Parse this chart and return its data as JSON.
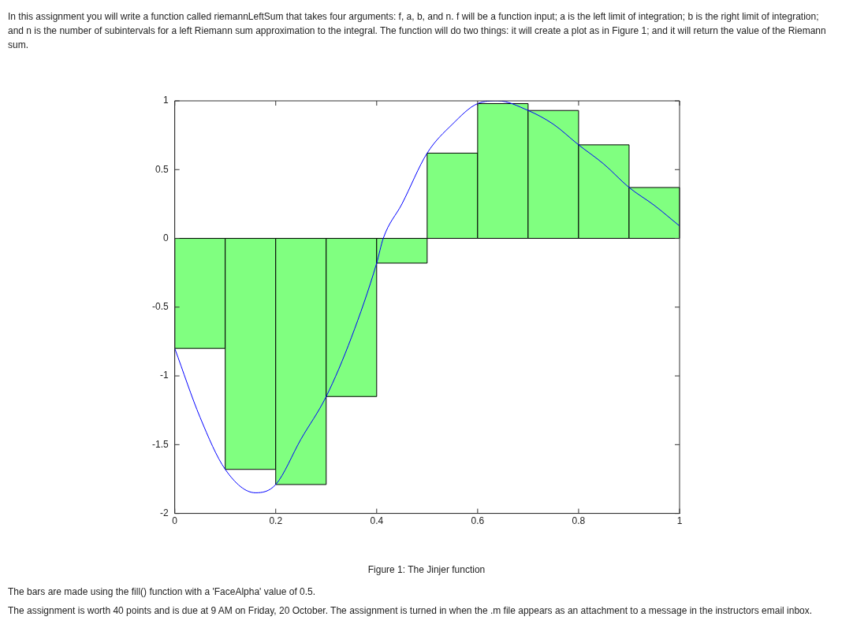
{
  "chart_data": {
    "type": "histogram",
    "annotations": [
      "In this assignment you will write a function called riemannLeftSum that takes four arguments: f, a, b, and n. f will be a function input; a is the left limit of integration; b is the right limit of integration; and n is the number of subintervals for a left Riemann sum approximation to the integral. The function will do two things: it will create a plot as in Figure 1; and it will return the value of the Riemann sum.",
      "Figure 1: The Jinjer function",
      "The bars are made using the fill() function with a 'FaceAlpha' value of 0.5.",
      "The assignment is worth 40 points and is due at 9 AM on Friday, 20 October. The assignment is turned in when the .m file appears as an attachment to a message in the instructors email inbox."
    ],
    "series": [
      {
        "type": "histogram",
        "color": "#80ff80",
        "bins": [
          0,
          0.1,
          0.2,
          0.3,
          0.4,
          0.5,
          0.6,
          0.7,
          0.8,
          0.9,
          1
        ],
        "values": [
          -0.8,
          -1.68,
          -1.79,
          -1.15,
          -0.18,
          0.62,
          0.98,
          0.93,
          0.68,
          0.37
        ]
      },
      {
        "type": "line",
        "color": "#0000ff",
        "x": [
          0,
          0.05,
          0.1,
          0.16,
          0.2,
          0.25,
          0.3,
          0.35,
          0.4,
          0.413,
          0.45,
          0.5,
          0.55,
          0.6,
          0.64,
          0.7,
          0.75,
          0.8,
          0.85,
          0.9,
          0.95,
          1
        ],
        "values": [
          -0.8,
          -1.3,
          -1.68,
          -1.85,
          -1.79,
          -1.46,
          -1.15,
          -0.72,
          -0.18,
          0,
          0.25,
          0.62,
          0.83,
          0.98,
          1,
          0.93,
          0.83,
          0.68,
          0.54,
          0.37,
          0.24,
          0.09
        ]
      }
    ],
    "xlim": [
      0,
      1
    ],
    "xticks": [
      0,
      0.2,
      0.4,
      0.6,
      0.8,
      1
    ],
    "ylim": [
      -2,
      1
    ],
    "yticks": [
      -2,
      -1.5,
      -1,
      -0.5,
      0,
      0.5,
      1
    ],
    "grid": false,
    "legend": false,
    "marker": "none",
    "line_style": "solid"
  }
}
